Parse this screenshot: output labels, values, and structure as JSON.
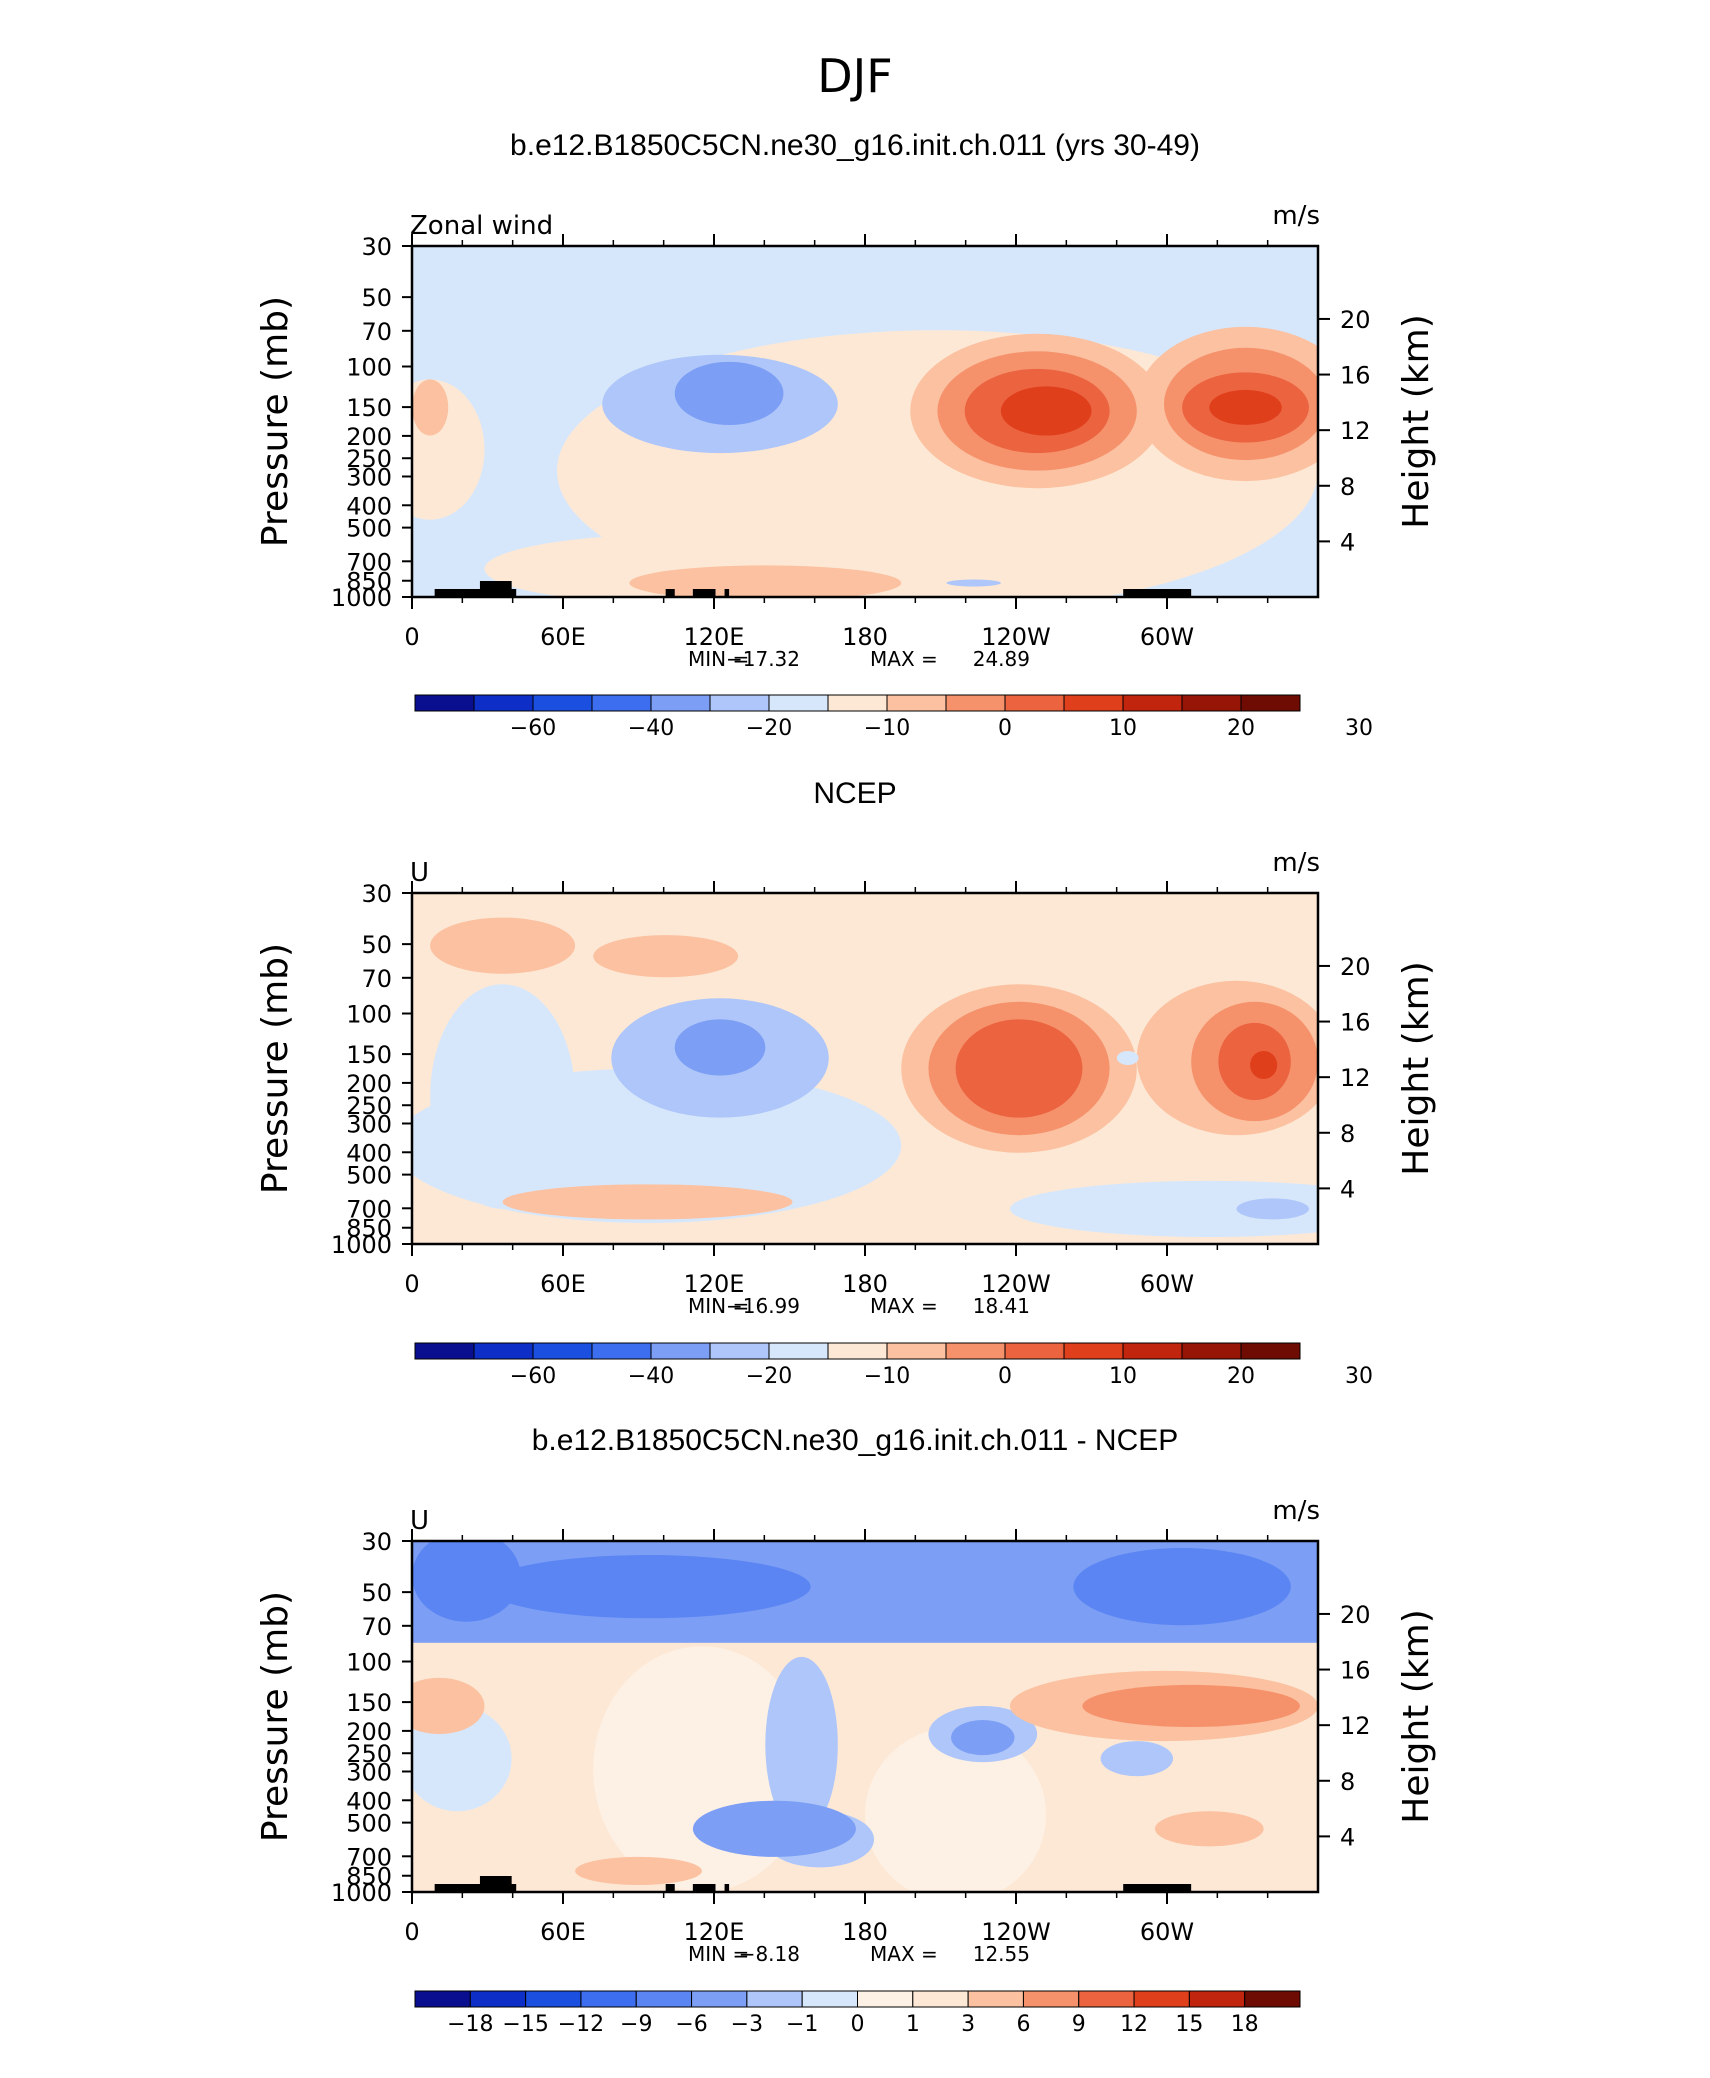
{
  "figure": {
    "title": "DJF",
    "panel_titles": [
      "b.e12.B1850C5CN.ne30_g16.init.ch.011 (yrs 30-49)",
      "NCEP",
      "b.e12.B1850C5CN.ne30_g16.init.ch.011 - NCEP"
    ]
  },
  "chart_data": [
    {
      "type": "heatmap",
      "title": "b.e12.B1850C5CN.ne30_g16.init.ch.011 (yrs 30-49)",
      "variable_label": "Zonal wind",
      "units": "m/s",
      "ylabel": "Pressure (mb)",
      "ylabel_right": "Height (km)",
      "x_tick_labels": [
        "0",
        "60E",
        "120E",
        "180",
        "120W",
        "60W"
      ],
      "y_tick_labels": [
        "30",
        "50",
        "70",
        "100",
        "150",
        "200",
        "250",
        "300",
        "400",
        "500",
        "700",
        "850",
        "1000"
      ],
      "y_right_tick_labels": [
        "20",
        "16",
        "12",
        "8",
        "4"
      ],
      "ylim": [
        1000,
        30
      ],
      "stats": {
        "min_label": "MIN =",
        "min": "−17.32",
        "max_label": "MAX =",
        "max": "24.89"
      },
      "colorbar": {
        "levels": [
          "−60",
          "−40",
          "−20",
          "−10",
          "0",
          "10",
          "20",
          "30"
        ],
        "colors": [
          "#0a0f8f",
          "#0d2fc8",
          "#1a4fe0",
          "#3d6ef0",
          "#7c9ef5",
          "#aec6f9",
          "#d7e7fb",
          "#fde8d5",
          "#fbc1a0",
          "#f5926c",
          "#ec6340",
          "#e03f1c",
          "#c2250d",
          "#961506",
          "#6e0b02"
        ]
      }
    },
    {
      "type": "heatmap",
      "title": "NCEP",
      "variable_label": "U",
      "units": "m/s",
      "ylabel": "Pressure (mb)",
      "ylabel_right": "Height (km)",
      "x_tick_labels": [
        "0",
        "60E",
        "120E",
        "180",
        "120W",
        "60W"
      ],
      "y_tick_labels": [
        "30",
        "50",
        "70",
        "100",
        "150",
        "200",
        "250",
        "300",
        "400",
        "500",
        "700",
        "850",
        "1000"
      ],
      "y_right_tick_labels": [
        "20",
        "16",
        "12",
        "8",
        "4"
      ],
      "ylim": [
        1000,
        30
      ],
      "stats": {
        "min_label": "MIN =",
        "min": "−16.99",
        "max_label": "MAX =",
        "max": "18.41"
      },
      "colorbar": {
        "levels": [
          "−60",
          "−40",
          "−20",
          "−10",
          "0",
          "10",
          "20",
          "30"
        ],
        "colors": [
          "#0a0f8f",
          "#0d2fc8",
          "#1a4fe0",
          "#3d6ef0",
          "#7c9ef5",
          "#aec6f9",
          "#d7e7fb",
          "#fde8d5",
          "#fbc1a0",
          "#f5926c",
          "#ec6340",
          "#e03f1c",
          "#c2250d",
          "#961506",
          "#6e0b02"
        ]
      }
    },
    {
      "type": "heatmap",
      "title": "b.e12.B1850C5CN.ne30_g16.init.ch.011 - NCEP",
      "variable_label": "U",
      "units": "m/s",
      "ylabel": "Pressure (mb)",
      "ylabel_right": "Height (km)",
      "x_tick_labels": [
        "0",
        "60E",
        "120E",
        "180",
        "120W",
        "60W"
      ],
      "y_tick_labels": [
        "30",
        "50",
        "70",
        "100",
        "150",
        "200",
        "250",
        "300",
        "400",
        "500",
        "700",
        "850",
        "1000"
      ],
      "y_right_tick_labels": [
        "20",
        "16",
        "12",
        "8",
        "4"
      ],
      "ylim": [
        1000,
        30
      ],
      "stats": {
        "min_label": "MIN =",
        "min": "−8.18",
        "max_label": "MAX =",
        "max": "12.55"
      },
      "colorbar": {
        "levels": [
          "−18",
          "−15",
          "−12",
          "−9",
          "−6",
          "−3",
          "−1",
          "0",
          "1",
          "3",
          "6",
          "9",
          "12",
          "15",
          "18"
        ],
        "colors": [
          "#0a0f8f",
          "#0d2fc8",
          "#1a4fe0",
          "#3d6ef0",
          "#5a85f3",
          "#7c9ef5",
          "#aec6f9",
          "#d7e7fb",
          "#fdf0e4",
          "#fde8d5",
          "#fbc1a0",
          "#f5926c",
          "#ec6340",
          "#e03f1c",
          "#c2250d",
          "#6e0b02"
        ]
      }
    }
  ]
}
